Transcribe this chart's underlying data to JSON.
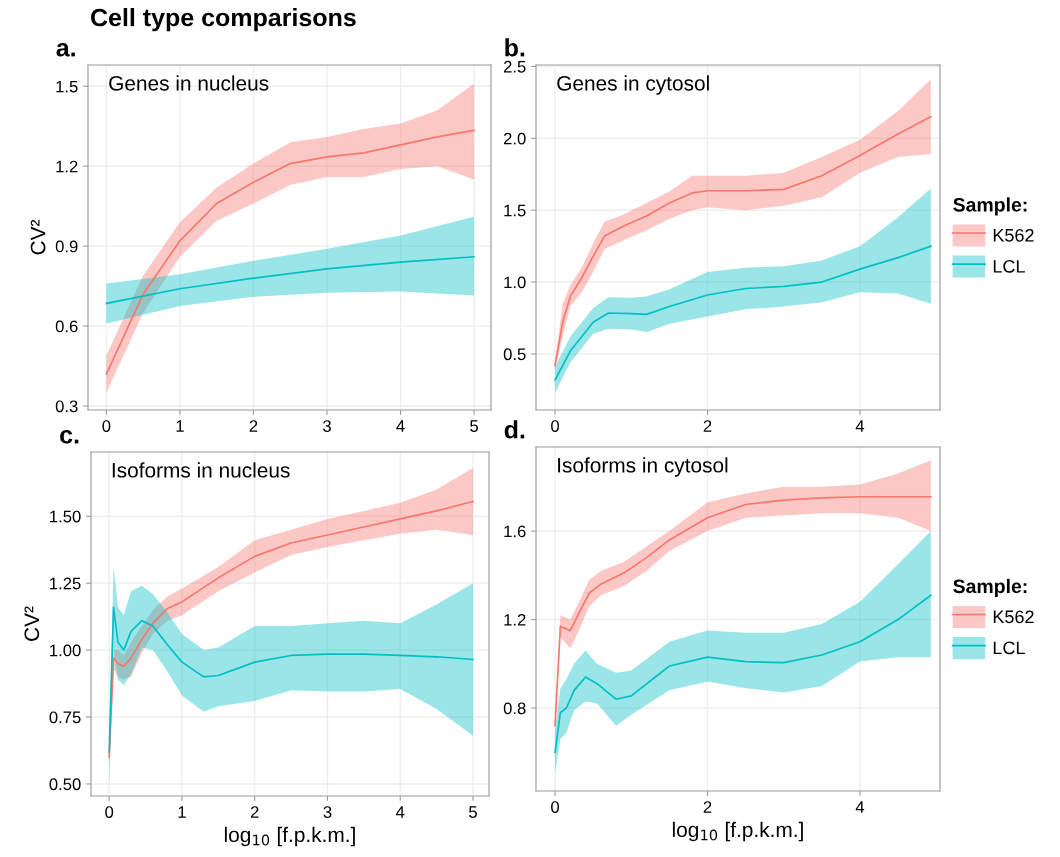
{
  "chart_data": [
    {
      "type": "line",
      "title": "a.",
      "subtitle": "Genes in nucleus",
      "annotations": [
        "Cell type comparisons"
      ],
      "ylabel": "CV²",
      "xlim": [
        -0.25,
        5.23
      ],
      "ylim": [
        0.285,
        1.58
      ],
      "xticks": [
        0,
        1,
        2,
        3,
        4,
        5
      ],
      "yticks": [
        0.3,
        0.6,
        0.9,
        1.2,
        1.5
      ],
      "grid": true,
      "legend": false,
      "series": [
        {
          "color": "#f8766d",
          "x": [
            0,
            0.5,
            1,
            1.5,
            2,
            2.5,
            3,
            3.5,
            4,
            4.5,
            5
          ],
          "values": [
            0.42,
            0.72,
            0.92,
            1.06,
            1.14,
            1.21,
            1.235,
            1.25,
            1.28,
            1.31,
            1.335
          ],
          "lower": [
            0.35,
            0.65,
            0.86,
            0.995,
            1.06,
            1.13,
            1.16,
            1.16,
            1.19,
            1.2,
            1.15
          ],
          "upper": [
            0.49,
            0.79,
            0.99,
            1.12,
            1.21,
            1.29,
            1.31,
            1.34,
            1.36,
            1.41,
            1.51
          ]
        },
        {
          "color": "#00bfc4",
          "x": [
            0,
            1,
            2,
            3,
            4,
            5
          ],
          "values": [
            0.685,
            0.74,
            0.78,
            0.815,
            0.84,
            0.86
          ],
          "lower": [
            0.61,
            0.675,
            0.71,
            0.725,
            0.73,
            0.715
          ],
          "upper": [
            0.76,
            0.795,
            0.845,
            0.89,
            0.94,
            1.01
          ]
        }
      ]
    },
    {
      "type": "line",
      "title": "b.",
      "subtitle": "Genes in cytosol",
      "xlim": [
        -0.25,
        5.05
      ],
      "ylim": [
        0.11,
        2.51
      ],
      "xticks": [
        0,
        2,
        4
      ],
      "yticks": [
        0.5,
        {
          "value": 1,
          "label": "1.0"
        },
        1.5,
        {
          "value": 2,
          "label": "2.0"
        },
        2.5
      ],
      "grid": true,
      "legend": "right",
      "legend_title": "Sample:",
      "series": [
        {
          "name": "K562",
          "color": "#f8766d",
          "x": [
            0,
            0.1,
            0.2,
            0.35,
            0.5,
            0.65,
            0.9,
            1.2,
            1.5,
            1.8,
            2,
            2.5,
            3,
            3.5,
            4,
            4.5,
            4.93
          ],
          "values": [
            0.42,
            0.72,
            0.9,
            1.03,
            1.18,
            1.32,
            1.39,
            1.46,
            1.55,
            1.62,
            1.635,
            1.635,
            1.645,
            1.74,
            1.88,
            2.03,
            2.15
          ],
          "lower": [
            0.4,
            0.62,
            0.83,
            0.93,
            1.07,
            1.23,
            1.29,
            1.36,
            1.44,
            1.5,
            1.52,
            1.5,
            1.53,
            1.59,
            1.76,
            1.87,
            1.89
          ],
          "upper": [
            0.45,
            0.85,
            0.98,
            1.1,
            1.27,
            1.42,
            1.47,
            1.55,
            1.63,
            1.74,
            1.74,
            1.74,
            1.76,
            1.87,
            1.99,
            2.19,
            2.41
          ]
        },
        {
          "name": "LCL",
          "color": "#00bfc4",
          "x": [
            0,
            0.2,
            0.5,
            0.7,
            1,
            1.2,
            1.5,
            2,
            2.5,
            3,
            3.5,
            4,
            4.5,
            4.93
          ],
          "values": [
            0.32,
            0.52,
            0.72,
            0.785,
            0.78,
            0.775,
            0.83,
            0.91,
            0.955,
            0.97,
            1.0,
            1.09,
            1.17,
            1.25
          ],
          "lower": [
            0.23,
            0.44,
            0.64,
            0.675,
            0.67,
            0.65,
            0.71,
            0.76,
            0.81,
            0.83,
            0.86,
            0.93,
            0.92,
            0.85
          ],
          "upper": [
            0.41,
            0.62,
            0.82,
            0.895,
            0.89,
            0.9,
            0.95,
            1.07,
            1.1,
            1.11,
            1.15,
            1.25,
            1.45,
            1.65
          ]
        }
      ]
    },
    {
      "type": "line",
      "title": "c.",
      "subtitle": "Isoforms in nucleus",
      "xlabel": "log$_{10}$ [f.p.k.m.]",
      "ylabel": "CV²",
      "xlim": [
        -0.25,
        5.22
      ],
      "ylim": [
        0.455,
        1.74
      ],
      "xticks": [
        0,
        1,
        2,
        3,
        4,
        5
      ],
      "yticks": [
        {
          "value": 0.5,
          "label": "0.50"
        },
        0.75,
        {
          "value": 1,
          "label": "1.00"
        },
        1.25,
        {
          "value": 1.5,
          "label": "1.50"
        }
      ],
      "grid": true,
      "legend": false,
      "series": [
        {
          "color": "#f8766d",
          "x": [
            0,
            0.06,
            0.12,
            0.2,
            0.3,
            0.45,
            0.6,
            0.8,
            1,
            1.5,
            2,
            2.5,
            3,
            3.5,
            4,
            4.5,
            5
          ],
          "values": [
            0.6,
            0.97,
            0.95,
            0.94,
            0.97,
            1.04,
            1.1,
            1.155,
            1.18,
            1.27,
            1.35,
            1.4,
            1.43,
            1.46,
            1.49,
            1.52,
            1.555
          ],
          "lower": [
            0.57,
            0.93,
            0.9,
            0.89,
            0.9,
            0.99,
            1.06,
            1.11,
            1.13,
            1.22,
            1.29,
            1.355,
            1.385,
            1.41,
            1.435,
            1.45,
            1.43
          ],
          "upper": [
            0.63,
            1.0,
            1.0,
            0.98,
            1.03,
            1.09,
            1.15,
            1.2,
            1.23,
            1.31,
            1.41,
            1.45,
            1.49,
            1.52,
            1.55,
            1.6,
            1.68
          ]
        },
        {
          "color": "#00bfc4",
          "x": [
            0,
            0.06,
            0.12,
            0.2,
            0.3,
            0.45,
            0.6,
            0.8,
            1,
            1.3,
            1.5,
            2,
            2.5,
            3,
            3.5,
            4,
            4.5,
            5
          ],
          "values": [
            0.62,
            1.16,
            1.03,
            1.0,
            1.07,
            1.11,
            1.09,
            1.02,
            0.955,
            0.9,
            0.905,
            0.955,
            0.98,
            0.985,
            0.985,
            0.98,
            0.975,
            0.965
          ],
          "lower": [
            0.5,
            1.0,
            0.89,
            0.87,
            0.91,
            1.01,
            1.0,
            0.92,
            0.83,
            0.77,
            0.79,
            0.81,
            0.85,
            0.845,
            0.845,
            0.855,
            0.78,
            0.68
          ],
          "upper": [
            0.66,
            1.31,
            1.16,
            1.13,
            1.22,
            1.24,
            1.21,
            1.14,
            1.06,
            1.0,
            1.01,
            1.09,
            1.09,
            1.1,
            1.11,
            1.1,
            1.17,
            1.25
          ]
        }
      ]
    },
    {
      "type": "line",
      "title": "d.",
      "subtitle": "Isoforms in cytosol",
      "xlabel": "log$_{10}$ [f.p.k.m.]",
      "xlim": [
        -0.25,
        5.05
      ],
      "ylim": [
        0.425,
        1.98
      ],
      "xticks": [
        0,
        2,
        4
      ],
      "yticks": [
        0.8,
        1.2,
        1.6
      ],
      "grid": true,
      "legend": "right",
      "legend_title": "Sample:",
      "series": [
        {
          "name": "K562",
          "color": "#f8766d",
          "x": [
            0,
            0.07,
            0.2,
            0.3,
            0.45,
            0.6,
            0.9,
            1.2,
            1.5,
            2,
            2.5,
            3,
            3.5,
            4,
            4.5,
            4.93
          ],
          "values": [
            0.72,
            1.17,
            1.15,
            1.22,
            1.32,
            1.36,
            1.41,
            1.48,
            1.56,
            1.66,
            1.72,
            1.74,
            1.75,
            1.755,
            1.755,
            1.755
          ],
          "lower": [
            0.7,
            1.12,
            1.07,
            1.14,
            1.26,
            1.31,
            1.35,
            1.42,
            1.51,
            1.6,
            1.66,
            1.67,
            1.68,
            1.68,
            1.66,
            1.6
          ],
          "upper": [
            0.74,
            1.22,
            1.2,
            1.27,
            1.38,
            1.42,
            1.46,
            1.53,
            1.6,
            1.73,
            1.77,
            1.8,
            1.8,
            1.81,
            1.86,
            1.92
          ]
        },
        {
          "name": "LCL",
          "color": "#00bfc4",
          "x": [
            0,
            0.07,
            0.15,
            0.25,
            0.4,
            0.55,
            0.8,
            1,
            1.5,
            2,
            2.5,
            3,
            3.5,
            4,
            4.5,
            4.93
          ],
          "values": [
            0.6,
            0.78,
            0.8,
            0.88,
            0.94,
            0.91,
            0.84,
            0.855,
            0.99,
            1.03,
            1.01,
            1.005,
            1.04,
            1.1,
            1.2,
            1.31
          ],
          "lower": [
            0.51,
            0.66,
            0.69,
            0.79,
            0.83,
            0.82,
            0.72,
            0.77,
            0.88,
            0.92,
            0.89,
            0.87,
            0.9,
            1.01,
            1.03,
            1.03
          ],
          "upper": [
            0.7,
            0.89,
            0.93,
            1.0,
            1.06,
            1.0,
            0.96,
            0.97,
            1.1,
            1.15,
            1.14,
            1.14,
            1.18,
            1.28,
            1.45,
            1.6
          ]
        }
      ]
    }
  ]
}
